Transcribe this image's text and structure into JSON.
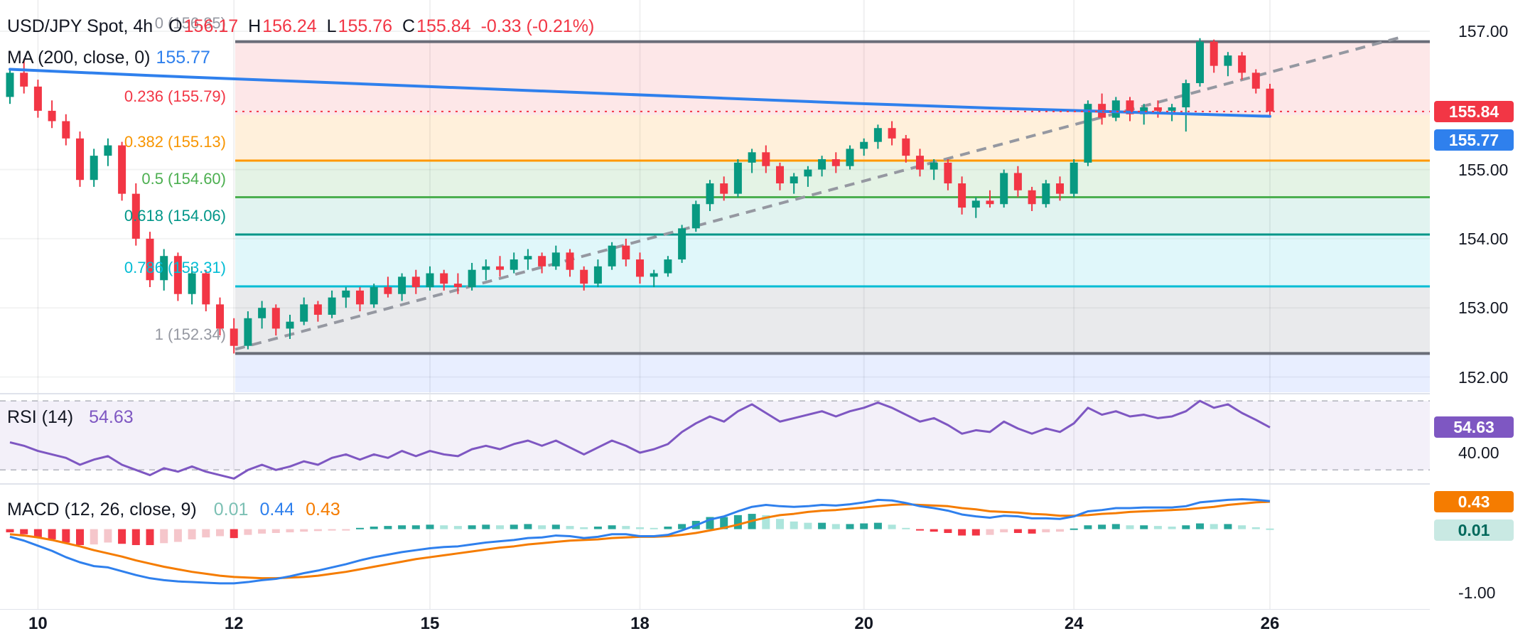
{
  "legend": {
    "symbol": "USD/JPY Spot, 4h",
    "o_label": "O",
    "o": "156.17",
    "h_label": "H",
    "h": "156.24",
    "l_label": "L",
    "l": "155.76",
    "c_label": "C",
    "c": "155.84",
    "change": "-0.33 (-0.21%)",
    "ma_label": "MA (200, close, 0)",
    "ma_value": "155.77",
    "rsi_label": "RSI (14)",
    "rsi_value": "54.63",
    "macd_label": "MACD (12, 26, close, 9)",
    "macd_hist": "0.01",
    "macd_line": "0.44",
    "macd_signal": "0.43"
  },
  "colors": {
    "up": "#089981",
    "down": "#f23645",
    "ma": "#2f80ed",
    "rsi": "#7e57c2",
    "macd_line": "#2f80ed",
    "signal_line": "#f57c00",
    "hist_up": "#26a69a",
    "hist_up_weak": "#ace5dc",
    "hist_down": "#f23645",
    "hist_down_weak": "#f5c6cb",
    "trend": "#9598a1",
    "badge_close": "#f23645",
    "badge_ma": "#2f80ed",
    "badge_rsi": "#7e57c2",
    "badge_signal": "#f57c00",
    "badge_hist_bg": "#c9e9e3",
    "badge_hist_fg": "#00695c"
  },
  "price_axis": {
    "labels": [
      {
        "text": "157.00",
        "price": 157.0
      },
      {
        "text": "155.00",
        "price": 155.0
      },
      {
        "text": "154.00",
        "price": 154.0
      },
      {
        "text": "153.00",
        "price": 153.0
      },
      {
        "text": "152.00",
        "price": 152.0
      }
    ],
    "close_badge": "155.84",
    "ma_badge": "155.77"
  },
  "rsi_axis": {
    "labels": [
      {
        "text": "40.00",
        "value": 40
      }
    ],
    "badge": "54.63"
  },
  "macd_axis": {
    "labels": [
      {
        "text": "-1.00",
        "value": -1
      }
    ],
    "badge_signal": "0.43",
    "badge_hist": "0.01"
  },
  "time_axis": {
    "ticks": [
      {
        "label": "10",
        "i": 2
      },
      {
        "label": "12",
        "i": 16
      },
      {
        "label": "15",
        "i": 30
      },
      {
        "label": "18",
        "i": 45
      },
      {
        "label": "20",
        "i": 61
      },
      {
        "label": "24",
        "i": 76
      },
      {
        "label": "26",
        "i": 90
      }
    ]
  },
  "chart_data": {
    "type": "candlestick",
    "symbol": "USD/JPY Spot",
    "timeframe": "4h",
    "ohlc": {
      "o": 156.17,
      "h": 156.24,
      "l": 155.76,
      "c": 155.84,
      "change": -0.33,
      "change_pct": -0.21
    },
    "ylim": [
      151.8,
      157.45
    ],
    "fib_levels": [
      {
        "label": "0 (156.85)",
        "price": 156.85,
        "line": "#6a6d78",
        "text": "#9598a1",
        "band": "rgba(242,54,69,0.12)"
      },
      {
        "label": "0.236 (155.79)",
        "price": 155.79,
        "line": "#f23645",
        "text": "#f23645",
        "band": "rgba(255,152,0,0.14)"
      },
      {
        "label": "0.382 (155.13)",
        "price": 155.13,
        "line": "#ff9800",
        "text": "#f89500",
        "band": "rgba(76,175,80,0.15)"
      },
      {
        "label": "0.5 (154.60)",
        "price": 154.6,
        "line": "#4caf50",
        "text": "#4caf50",
        "band": "rgba(8,153,129,0.12)"
      },
      {
        "label": "0.618 (154.06)",
        "price": 154.06,
        "line": "#009688",
        "text": "#009688",
        "band": "rgba(0,188,212,0.12)"
      },
      {
        "label": "0.786 (153.31)",
        "price": 153.31,
        "line": "#00bcd4",
        "text": "#00bcd4",
        "band": "rgba(120,123,134,0.16)"
      },
      {
        "label": "1 (152.34)",
        "price": 152.34,
        "line": "#6a6d78",
        "text": "#9598a1",
        "band": "rgba(41,98,255,0.11)"
      }
    ],
    "ma200": [
      [
        0,
        156.45
      ],
      [
        10,
        156.36
      ],
      [
        20,
        156.28
      ],
      [
        30,
        156.2
      ],
      [
        40,
        156.12
      ],
      [
        50,
        156.04
      ],
      [
        60,
        155.96
      ],
      [
        70,
        155.89
      ],
      [
        75,
        155.86
      ],
      [
        80,
        155.83
      ],
      [
        85,
        155.8
      ],
      [
        90,
        155.77
      ]
    ],
    "candles": [
      [
        156.05,
        156.45,
        155.95,
        156.4
      ],
      [
        156.4,
        156.6,
        156.1,
        156.2
      ],
      [
        156.2,
        156.3,
        155.75,
        155.85
      ],
      [
        155.85,
        156.0,
        155.6,
        155.7
      ],
      [
        155.7,
        155.8,
        155.35,
        155.45
      ],
      [
        155.45,
        155.55,
        154.75,
        154.85
      ],
      [
        154.85,
        155.3,
        154.75,
        155.2
      ],
      [
        155.2,
        155.45,
        155.05,
        155.35
      ],
      [
        155.35,
        155.4,
        154.55,
        154.65
      ],
      [
        154.65,
        154.8,
        153.9,
        154.0
      ],
      [
        154.0,
        154.1,
        153.3,
        153.4
      ],
      [
        153.4,
        153.85,
        153.25,
        153.75
      ],
      [
        153.75,
        153.8,
        153.1,
        153.2
      ],
      [
        153.2,
        153.6,
        153.05,
        153.5
      ],
      [
        153.5,
        153.55,
        152.95,
        153.05
      ],
      [
        153.05,
        153.15,
        152.6,
        152.7
      ],
      [
        152.7,
        152.85,
        152.34,
        152.45
      ],
      [
        152.45,
        152.95,
        152.4,
        152.85
      ],
      [
        152.85,
        153.1,
        152.7,
        153.0
      ],
      [
        153.0,
        153.05,
        152.6,
        152.7
      ],
      [
        152.7,
        152.9,
        152.55,
        152.8
      ],
      [
        152.8,
        153.15,
        152.75,
        153.05
      ],
      [
        153.05,
        153.1,
        152.8,
        152.9
      ],
      [
        152.9,
        153.25,
        152.85,
        153.15
      ],
      [
        153.15,
        153.3,
        153.0,
        153.25
      ],
      [
        153.25,
        153.3,
        152.95,
        153.05
      ],
      [
        153.05,
        153.35,
        153.0,
        153.3
      ],
      [
        153.3,
        153.45,
        153.15,
        153.2
      ],
      [
        153.2,
        153.5,
        153.1,
        153.45
      ],
      [
        153.45,
        153.55,
        153.2,
        153.3
      ],
      [
        153.3,
        153.6,
        153.25,
        153.5
      ],
      [
        153.5,
        153.55,
        153.25,
        153.35
      ],
      [
        153.35,
        153.5,
        153.2,
        153.3
      ],
      [
        153.3,
        153.65,
        153.25,
        153.55
      ],
      [
        153.55,
        153.7,
        153.4,
        153.6
      ],
      [
        153.6,
        153.75,
        153.45,
        153.55
      ],
      [
        153.55,
        153.8,
        153.5,
        153.7
      ],
      [
        153.7,
        153.85,
        153.55,
        153.75
      ],
      [
        153.75,
        153.8,
        153.5,
        153.6
      ],
      [
        153.6,
        153.9,
        153.55,
        153.8
      ],
      [
        153.8,
        153.85,
        153.45,
        153.55
      ],
      [
        153.55,
        153.6,
        153.25,
        153.35
      ],
      [
        153.35,
        153.7,
        153.3,
        153.6
      ],
      [
        153.6,
        153.95,
        153.55,
        153.9
      ],
      [
        153.9,
        154.0,
        153.6,
        153.7
      ],
      [
        153.7,
        153.8,
        153.35,
        153.45
      ],
      [
        153.45,
        153.55,
        153.3,
        153.5
      ],
      [
        153.5,
        153.75,
        153.45,
        153.7
      ],
      [
        153.7,
        154.2,
        153.65,
        154.15
      ],
      [
        154.15,
        154.55,
        154.1,
        154.5
      ],
      [
        154.5,
        154.85,
        154.4,
        154.8
      ],
      [
        154.8,
        154.9,
        154.55,
        154.65
      ],
      [
        154.65,
        155.15,
        154.6,
        155.1
      ],
      [
        155.1,
        155.3,
        154.95,
        155.25
      ],
      [
        155.25,
        155.35,
        154.95,
        155.05
      ],
      [
        155.05,
        155.1,
        154.7,
        154.8
      ],
      [
        154.8,
        154.95,
        154.65,
        154.9
      ],
      [
        154.9,
        155.05,
        154.75,
        155.0
      ],
      [
        155.0,
        155.2,
        154.9,
        155.15
      ],
      [
        155.15,
        155.25,
        154.95,
        155.05
      ],
      [
        155.05,
        155.35,
        155.0,
        155.3
      ],
      [
        155.3,
        155.45,
        155.2,
        155.4
      ],
      [
        155.4,
        155.65,
        155.3,
        155.6
      ],
      [
        155.6,
        155.7,
        155.35,
        155.45
      ],
      [
        155.45,
        155.5,
        155.1,
        155.2
      ],
      [
        155.2,
        155.3,
        154.9,
        155.0
      ],
      [
        155.0,
        155.15,
        154.85,
        155.1
      ],
      [
        155.1,
        155.15,
        154.7,
        154.8
      ],
      [
        154.8,
        154.9,
        154.35,
        154.45
      ],
      [
        154.45,
        154.6,
        154.3,
        154.55
      ],
      [
        154.55,
        154.7,
        154.45,
        154.5
      ],
      [
        154.5,
        155.0,
        154.45,
        154.95
      ],
      [
        154.95,
        155.05,
        154.6,
        154.7
      ],
      [
        154.7,
        154.75,
        154.4,
        154.5
      ],
      [
        154.5,
        154.85,
        154.45,
        154.8
      ],
      [
        154.8,
        154.9,
        154.55,
        154.65
      ],
      [
        154.65,
        155.15,
        154.6,
        155.1
      ],
      [
        155.1,
        156.0,
        155.05,
        155.95
      ],
      [
        155.95,
        156.1,
        155.65,
        155.75
      ],
      [
        155.75,
        156.05,
        155.7,
        156.0
      ],
      [
        156.0,
        156.05,
        155.7,
        155.8
      ],
      [
        155.8,
        155.95,
        155.65,
        155.9
      ],
      [
        155.9,
        156.0,
        155.75,
        155.85
      ],
      [
        155.85,
        155.95,
        155.7,
        155.9
      ],
      [
        155.9,
        156.3,
        155.55,
        156.25
      ],
      [
        156.25,
        156.9,
        156.2,
        156.85
      ],
      [
        156.85,
        156.88,
        156.4,
        156.5
      ],
      [
        156.5,
        156.7,
        156.35,
        156.65
      ],
      [
        156.65,
        156.7,
        156.3,
        156.4
      ],
      [
        156.4,
        156.45,
        156.1,
        156.17
      ],
      [
        156.17,
        156.24,
        155.76,
        155.84
      ]
    ],
    "rsi": {
      "period": 14,
      "last": 54.63,
      "levels": [
        70,
        30
      ],
      "values": [
        46,
        44,
        41,
        39,
        37,
        33,
        36,
        38,
        33,
        30,
        27,
        31,
        29,
        32,
        29,
        27,
        25,
        30,
        33,
        30,
        32,
        35,
        33,
        37,
        39,
        36,
        39,
        37,
        41,
        38,
        41,
        39,
        38,
        42,
        44,
        42,
        45,
        47,
        44,
        47,
        43,
        39,
        43,
        47,
        44,
        40,
        42,
        45,
        52,
        57,
        61,
        58,
        64,
        68,
        63,
        58,
        60,
        62,
        64,
        61,
        64,
        66,
        69,
        66,
        62,
        58,
        60,
        56,
        51,
        53,
        52,
        58,
        54,
        51,
        54,
        52,
        57,
        66,
        62,
        64,
        61,
        62,
        60,
        61,
        64,
        70,
        66,
        68,
        63,
        59,
        54.63
      ]
    },
    "macd": {
      "params": [
        12,
        26,
        9
      ],
      "last_macd": 0.44,
      "last_signal": 0.43,
      "last_hist": 0.01,
      "macd": [
        -0.12,
        -0.18,
        -0.26,
        -0.34,
        -0.44,
        -0.52,
        -0.58,
        -0.6,
        -0.66,
        -0.72,
        -0.77,
        -0.8,
        -0.82,
        -0.83,
        -0.84,
        -0.85,
        -0.85,
        -0.83,
        -0.8,
        -0.78,
        -0.74,
        -0.69,
        -0.65,
        -0.6,
        -0.55,
        -0.49,
        -0.44,
        -0.4,
        -0.36,
        -0.33,
        -0.3,
        -0.28,
        -0.27,
        -0.24,
        -0.21,
        -0.19,
        -0.17,
        -0.14,
        -0.13,
        -0.1,
        -0.11,
        -0.14,
        -0.12,
        -0.08,
        -0.08,
        -0.11,
        -0.11,
        -0.09,
        -0.02,
        0.06,
        0.15,
        0.2,
        0.28,
        0.35,
        0.38,
        0.36,
        0.35,
        0.36,
        0.38,
        0.37,
        0.39,
        0.42,
        0.46,
        0.45,
        0.41,
        0.36,
        0.33,
        0.29,
        0.23,
        0.2,
        0.18,
        0.21,
        0.2,
        0.17,
        0.17,
        0.16,
        0.2,
        0.28,
        0.3,
        0.33,
        0.33,
        0.34,
        0.34,
        0.34,
        0.36,
        0.42,
        0.44,
        0.46,
        0.47,
        0.46,
        0.44
      ],
      "signal": [
        -0.08,
        -0.1,
        -0.13,
        -0.17,
        -0.22,
        -0.27,
        -0.33,
        -0.38,
        -0.43,
        -0.49,
        -0.54,
        -0.59,
        -0.63,
        -0.67,
        -0.7,
        -0.73,
        -0.75,
        -0.76,
        -0.77,
        -0.77,
        -0.76,
        -0.75,
        -0.73,
        -0.7,
        -0.67,
        -0.63,
        -0.59,
        -0.55,
        -0.51,
        -0.47,
        -0.44,
        -0.41,
        -0.38,
        -0.35,
        -0.32,
        -0.29,
        -0.27,
        -0.24,
        -0.22,
        -0.2,
        -0.18,
        -0.17,
        -0.16,
        -0.14,
        -0.13,
        -0.12,
        -0.12,
        -0.11,
        -0.09,
        -0.06,
        -0.02,
        0.02,
        0.07,
        0.13,
        0.18,
        0.22,
        0.24,
        0.27,
        0.29,
        0.3,
        0.32,
        0.34,
        0.36,
        0.38,
        0.39,
        0.38,
        0.37,
        0.36,
        0.33,
        0.31,
        0.28,
        0.27,
        0.26,
        0.24,
        0.23,
        0.21,
        0.21,
        0.22,
        0.24,
        0.25,
        0.27,
        0.28,
        0.29,
        0.3,
        0.31,
        0.33,
        0.35,
        0.38,
        0.4,
        0.42,
        0.43
      ],
      "hist": [
        -0.05,
        -0.08,
        -0.13,
        -0.16,
        -0.21,
        -0.25,
        -0.24,
        -0.21,
        -0.23,
        -0.25,
        -0.25,
        -0.22,
        -0.2,
        -0.16,
        -0.13,
        -0.11,
        -0.14,
        -0.09,
        -0.07,
        -0.06,
        -0.05,
        -0.04,
        -0.03,
        -0.02,
        -0.01,
        0.02,
        0.04,
        0.05,
        0.06,
        0.06,
        0.07,
        0.06,
        0.05,
        0.06,
        0.07,
        0.06,
        0.07,
        0.08,
        0.06,
        0.07,
        0.05,
        0.03,
        0.04,
        0.06,
        0.05,
        0.03,
        0.02,
        0.04,
        0.08,
        0.13,
        0.19,
        0.19,
        0.22,
        0.24,
        0.22,
        0.16,
        0.12,
        0.1,
        0.1,
        0.08,
        0.08,
        0.09,
        0.1,
        0.07,
        0.02,
        -0.02,
        -0.04,
        -0.06,
        -0.1,
        -0.1,
        -0.09,
        -0.05,
        -0.06,
        -0.07,
        -0.05,
        -0.04,
        0.01,
        0.06,
        0.07,
        0.08,
        0.06,
        0.06,
        0.05,
        0.04,
        0.06,
        0.09,
        0.08,
        0.08,
        0.06,
        0.03,
        0.01
      ]
    },
    "trendline": {
      "from_price": 152.4,
      "to_price": 156.93
    }
  }
}
